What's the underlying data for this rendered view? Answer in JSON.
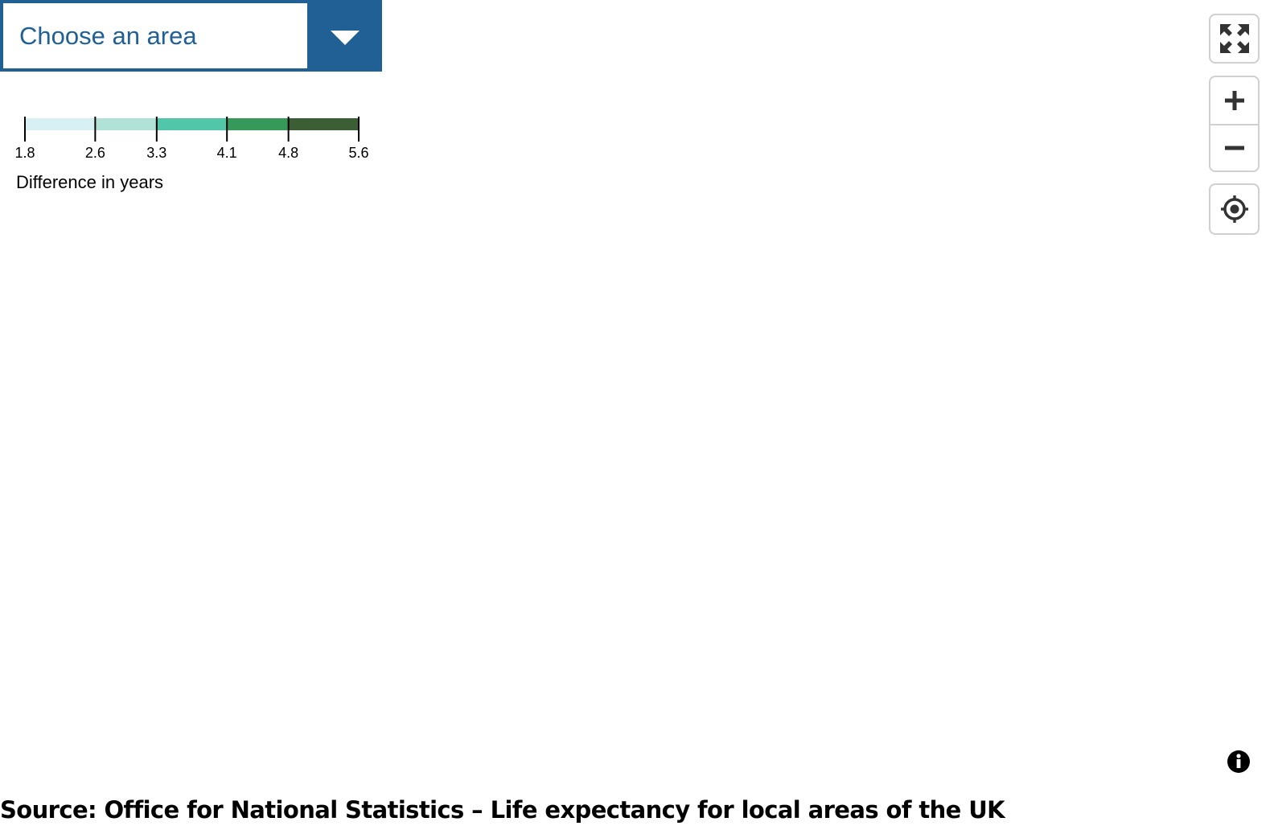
{
  "area_select": {
    "placeholder": "Choose an area",
    "toggle_icon": "chevron-down-icon",
    "accent_color": "#206095"
  },
  "legend": {
    "title": "Difference in years",
    "breaks": [
      "1.8",
      "2.6",
      "3.3",
      "4.1",
      "4.8",
      "5.6"
    ],
    "colors": [
      "#d6f0f4",
      "#b1e2d8",
      "#52c6a8",
      "#36995a",
      "#3c5e34"
    ]
  },
  "map_controls": {
    "fullscreen_icon": "fullscreen-icon",
    "zoom_in_icon": "plus-icon",
    "zoom_out_icon": "minus-icon",
    "locate_icon": "geolocate-icon",
    "info_icon": "info-icon"
  },
  "source": {
    "text": "Source: Office for National Statistics – Life expectancy for local areas of the UK"
  }
}
